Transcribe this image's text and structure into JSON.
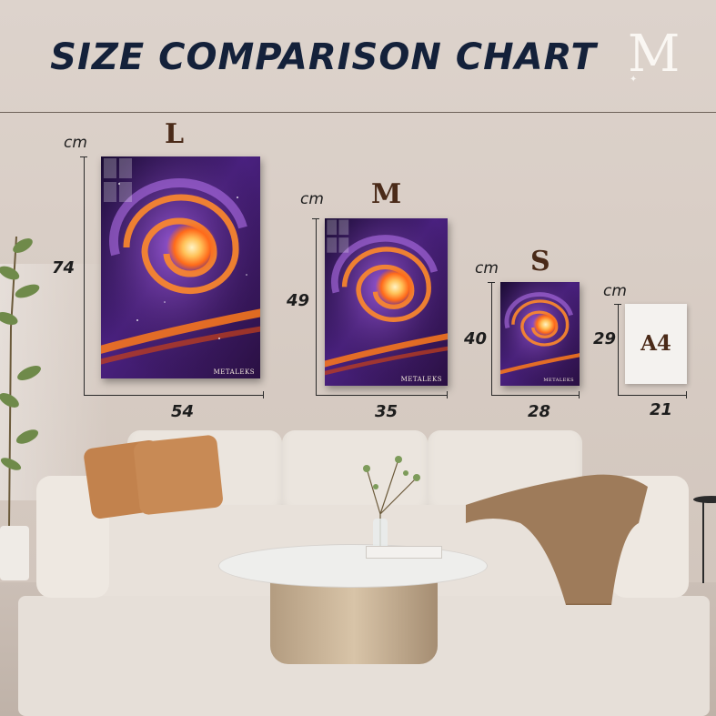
{
  "header": {
    "title": "SIZE COMPARISON CHART",
    "logo_letter": "M"
  },
  "unit": "cm",
  "sizes": [
    {
      "id": "large",
      "letter": "L",
      "height": "74",
      "width": "54",
      "brand": "METALEKS"
    },
    {
      "id": "medium",
      "letter": "M",
      "height": "49",
      "width": "35",
      "brand": "METALEKS"
    },
    {
      "id": "small",
      "letter": "S",
      "height": "40",
      "width": "28",
      "brand": "METALEKS"
    },
    {
      "id": "a4",
      "letter": "A4",
      "height": "29",
      "width": "21"
    }
  ],
  "colors": {
    "title": "#14213a",
    "size_letter": "#4a2a18",
    "wall": "#d9cec6",
    "galaxy_core": "#ffd27a",
    "galaxy_arm": "#ff7a1a",
    "galaxy_space": "#2a1246"
  },
  "icons": {
    "logo": "m-logo-icon"
  }
}
